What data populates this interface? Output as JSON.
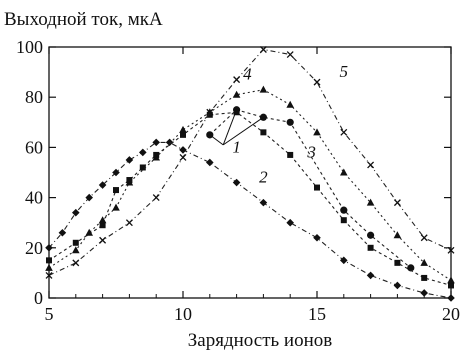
{
  "chart_data": {
    "type": "scatter",
    "title": "",
    "ylabel": "Выходной ток, мкА",
    "xlabel": "Зарядность ионов",
    "xlim": [
      5,
      20
    ],
    "ylim": [
      0,
      100
    ],
    "xticks": [
      "5",
      "10",
      "15",
      "20"
    ],
    "yticks": [
      "0",
      "20",
      "40",
      "60",
      "80",
      "100"
    ],
    "grid": false,
    "series": [
      {
        "label": "1",
        "marker": "circle",
        "points": [
          [
            11,
            65
          ],
          [
            12,
            75
          ],
          [
            13,
            72
          ],
          [
            14,
            70
          ],
          [
            16,
            35
          ],
          [
            17,
            25
          ],
          [
            18.5,
            12
          ]
        ]
      },
      {
        "label": "2",
        "marker": "diamond",
        "points": [
          [
            5,
            20
          ],
          [
            5.5,
            26
          ],
          [
            6,
            34
          ],
          [
            6.5,
            40
          ],
          [
            7,
            45
          ],
          [
            7.5,
            50
          ],
          [
            8,
            55
          ],
          [
            8.5,
            58
          ],
          [
            9,
            62
          ],
          [
            9.5,
            62
          ],
          [
            10,
            59
          ],
          [
            11,
            54
          ],
          [
            12,
            46
          ],
          [
            13,
            38
          ],
          [
            14,
            30
          ],
          [
            15,
            24
          ],
          [
            16,
            15
          ],
          [
            17,
            9
          ],
          [
            18,
            5
          ],
          [
            19,
            2
          ],
          [
            20,
            0
          ]
        ]
      },
      {
        "label": "3",
        "marker": "square",
        "points": [
          [
            5,
            15
          ],
          [
            6,
            22
          ],
          [
            7,
            29
          ],
          [
            7.5,
            43
          ],
          [
            8,
            47
          ],
          [
            8.5,
            52
          ],
          [
            9,
            57
          ],
          [
            10,
            65
          ],
          [
            11,
            73
          ],
          [
            12,
            74
          ],
          [
            13,
            66
          ],
          [
            14,
            57
          ],
          [
            15,
            44
          ],
          [
            16,
            31
          ],
          [
            17,
            20
          ],
          [
            18,
            14
          ],
          [
            19,
            8
          ],
          [
            20,
            5
          ]
        ]
      },
      {
        "label": "4",
        "marker": "triangle",
        "points": [
          [
            5,
            12
          ],
          [
            6,
            19
          ],
          [
            6.5,
            26
          ],
          [
            7,
            31
          ],
          [
            7.5,
            36
          ],
          [
            8,
            46
          ],
          [
            9,
            56
          ],
          [
            10,
            67
          ],
          [
            11,
            74
          ],
          [
            12,
            81
          ],
          [
            13,
            83
          ],
          [
            14,
            77
          ],
          [
            15,
            66
          ],
          [
            16,
            50
          ],
          [
            17,
            38
          ],
          [
            18,
            25
          ],
          [
            19,
            14
          ],
          [
            20,
            7
          ]
        ]
      },
      {
        "label": "5",
        "marker": "cross",
        "points": [
          [
            5,
            9
          ],
          [
            6,
            14
          ],
          [
            7,
            23
          ],
          [
            8,
            30
          ],
          [
            9,
            40
          ],
          [
            10,
            56
          ],
          [
            11,
            74
          ],
          [
            12,
            87
          ],
          [
            13,
            99
          ],
          [
            14,
            97
          ],
          [
            15,
            86
          ],
          [
            16,
            66
          ],
          [
            17,
            53
          ],
          [
            18,
            38
          ],
          [
            19,
            24
          ],
          [
            20,
            19
          ]
        ]
      }
    ],
    "annotations": [
      {
        "text": "1",
        "x": 12,
        "y": 58
      },
      {
        "text": "2",
        "x": 13,
        "y": 46
      },
      {
        "text": "3",
        "x": 14.8,
        "y": 56
      },
      {
        "text": "4",
        "x": 12.4,
        "y": 87
      },
      {
        "text": "5",
        "x": 16,
        "y": 88
      }
    ]
  }
}
